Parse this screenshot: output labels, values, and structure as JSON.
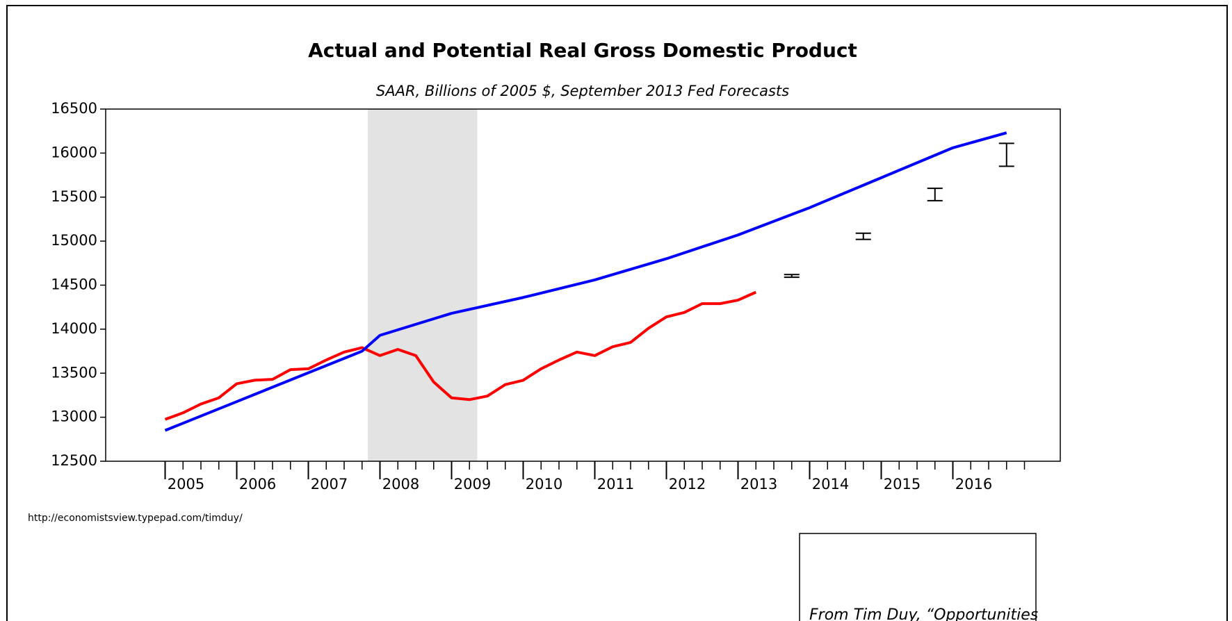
{
  "chart_data": {
    "type": "line",
    "title": "Actual and Potential Real Gross Domestic Product",
    "subtitle": "SAAR, Billions of 2005 $, September 2013 Fed Forecasts",
    "source": "http://economistsview.typepad.com/timduy/",
    "note": "From Tim Duy, “Opportunities",
    "xlim": [
      2004.17,
      2017.5
    ],
    "xticks": [
      2005,
      2006,
      2007,
      2008,
      2009,
      2010,
      2011,
      2012,
      2013,
      2014,
      2015,
      2016
    ],
    "xminor_ticks": [
      2005.25,
      2005.5,
      2005.75,
      2006.25,
      2006.5,
      2006.75,
      2007.25,
      2007.5,
      2007.75,
      2008.25,
      2008.5,
      2008.75,
      2009.25,
      2009.5,
      2009.75,
      2010.25,
      2010.5,
      2010.75,
      2011.25,
      2011.5,
      2011.75,
      2012.25,
      2012.5,
      2012.75,
      2013.25,
      2013.5,
      2013.75,
      2014.25,
      2014.5,
      2014.75,
      2015.25,
      2015.5,
      2015.75,
      2016.25,
      2016.5,
      2016.75,
      2017
    ],
    "ylim": [
      12500,
      16500
    ],
    "yticks": [
      12500,
      13000,
      13500,
      14000,
      14500,
      15000,
      15500,
      16000,
      16500
    ],
    "shaded_region": [
      2007.83,
      2009.36
    ],
    "shade_color": "#e3e3e3",
    "series": [
      {
        "color": "#ff0000",
        "x": [
          2005,
          2005.25,
          2005.5,
          2005.75,
          2006,
          2006.25,
          2006.5,
          2006.75,
          2007,
          2007.25,
          2007.5,
          2007.75,
          2008,
          2008.25,
          2008.5,
          2008.75,
          2009,
          2009.25,
          2009.5,
          2009.75,
          2010,
          2010.25,
          2010.5,
          2010.75,
          2011,
          2011.25,
          2011.5,
          2011.75,
          2012,
          2012.25,
          2012.5,
          2012.75,
          2013,
          2013.25
        ],
        "values": [
          12975,
          13050,
          13150,
          13220,
          13380,
          13420,
          13430,
          13540,
          13550,
          13650,
          13740,
          13790,
          13700,
          13770,
          13700,
          13400,
          13220,
          13200,
          13240,
          13370,
          13420,
          13550,
          13650,
          13740,
          13700,
          13800,
          13850,
          14010,
          14140,
          14190,
          14290,
          14290,
          14330,
          14420
        ]
      },
      {
        "color": "#0000ff",
        "x": [
          2005,
          2006,
          2007,
          2007.75,
          2008,
          2009,
          2010,
          2011,
          2012,
          2013,
          2014,
          2015,
          2016,
          2016.75
        ],
        "values": [
          12850,
          13177,
          13505,
          13750,
          13930,
          14180,
          14360,
          14560,
          14800,
          15070,
          15380,
          15720,
          16060,
          16230
        ]
      }
    ],
    "forecast": {
      "color": "#000000",
      "x": [
        2013.75,
        2014.75,
        2015.75,
        2016.75
      ],
      "low": [
        14590,
        15020,
        15460,
        15850
      ],
      "high": [
        14620,
        15090,
        15600,
        16110
      ]
    }
  }
}
